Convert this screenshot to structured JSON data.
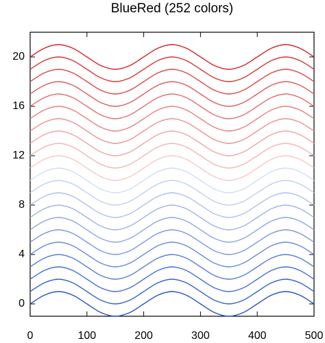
{
  "chart_data": {
    "type": "line",
    "title": "BlueRed (252 colors)",
    "x": [
      0,
      25,
      50,
      75,
      100,
      125,
      150,
      175,
      200,
      225,
      250,
      275,
      300,
      325,
      350,
      375,
      400,
      425,
      450,
      475,
      500
    ],
    "xlim": [
      0,
      500
    ],
    "xticks": [
      0,
      100,
      200,
      300,
      400,
      500
    ],
    "ylim": [
      -1,
      22
    ],
    "yticks": [
      0,
      4,
      8,
      12,
      16,
      20
    ],
    "series": [
      {
        "color": "#2050c8",
        "values": [
          0,
          0.71,
          1,
          0.71,
          0,
          -0.71,
          -1,
          -0.71,
          0,
          0.71,
          1,
          0.71,
          0,
          -0.71,
          -1,
          -0.71,
          0,
          0.71,
          1,
          0.71,
          0
        ]
      },
      {
        "color": "#325ecd",
        "values": [
          1,
          1.71,
          2,
          1.71,
          1,
          0.29,
          0,
          0.29,
          1,
          1.71,
          2,
          1.71,
          1,
          0.29,
          0,
          0.29,
          1,
          1.71,
          2,
          1.71,
          1
        ]
      },
      {
        "color": "#436cd1",
        "values": [
          2,
          2.71,
          3,
          2.71,
          2,
          1.29,
          1,
          1.29,
          2,
          2.71,
          3,
          2.71,
          2,
          1.29,
          1,
          1.29,
          2,
          2.71,
          3,
          2.71,
          2
        ]
      },
      {
        "color": "#557ad6",
        "values": [
          3,
          3.71,
          4,
          3.71,
          3,
          2.29,
          2,
          2.29,
          3,
          3.71,
          4,
          3.71,
          3,
          2.29,
          2,
          2.29,
          3,
          3.71,
          4,
          3.71,
          3
        ]
      },
      {
        "color": "#6688da",
        "values": [
          4,
          4.71,
          5,
          4.71,
          4,
          3.29,
          3,
          3.29,
          4,
          4.71,
          5,
          4.71,
          4,
          3.29,
          3,
          3.29,
          4,
          4.71,
          5,
          4.71,
          4
        ]
      },
      {
        "color": "#7896df",
        "values": [
          5,
          5.71,
          6,
          5.71,
          5,
          4.29,
          4,
          4.29,
          5,
          5.71,
          6,
          5.71,
          5,
          4.29,
          4,
          4.29,
          5,
          5.71,
          6,
          5.71,
          5
        ]
      },
      {
        "color": "#8aa4e3",
        "values": [
          6,
          6.71,
          7,
          6.71,
          6,
          5.29,
          5,
          5.29,
          6,
          6.71,
          7,
          6.71,
          6,
          5.29,
          5,
          5.29,
          6,
          6.71,
          7,
          6.71,
          6
        ]
      },
      {
        "color": "#9bb2e8",
        "values": [
          7,
          7.71,
          8,
          7.71,
          7,
          6.29,
          6,
          6.29,
          7,
          7.71,
          8,
          7.71,
          7,
          6.29,
          6,
          6.29,
          7,
          7.71,
          8,
          7.71,
          7
        ]
      },
      {
        "color": "#adc0ec",
        "values": [
          8,
          8.71,
          9,
          8.71,
          8,
          7.29,
          7,
          7.29,
          8,
          8.71,
          9,
          8.71,
          8,
          7.29,
          7,
          7.29,
          8,
          8.71,
          9,
          8.71,
          8
        ]
      },
      {
        "color": "#becef1",
        "values": [
          9,
          9.71,
          10,
          9.71,
          9,
          8.29,
          8,
          8.29,
          9,
          9.71,
          10,
          9.71,
          9,
          8.29,
          8,
          8.29,
          9,
          9.71,
          10,
          9.71,
          9
        ]
      },
      {
        "color": "#d0dcf5",
        "values": [
          10,
          10.71,
          11,
          10.71,
          10,
          9.29,
          9,
          9.29,
          10,
          10.71,
          11,
          10.71,
          10,
          9.29,
          9,
          9.29,
          10,
          10.71,
          11,
          10.71,
          10
        ]
      },
      {
        "color": "#f5c8c8",
        "values": [
          11,
          11.71,
          12,
          11.71,
          11,
          10.29,
          10,
          10.29,
          11,
          11.71,
          12,
          11.71,
          11,
          10.29,
          10,
          10.29,
          11,
          11.71,
          12,
          11.71,
          11
        ]
      },
      {
        "color": "#f1b5b5",
        "values": [
          12,
          12.71,
          13,
          12.71,
          12,
          11.29,
          11,
          11.29,
          12,
          12.71,
          13,
          12.71,
          12,
          11.29,
          11,
          11.29,
          12,
          12.71,
          13,
          12.71,
          12
        ]
      },
      {
        "color": "#eea3a3",
        "values": [
          13,
          13.71,
          14,
          13.71,
          13,
          12.29,
          12,
          12.29,
          13,
          13.71,
          14,
          13.71,
          13,
          12.29,
          12,
          12.29,
          13,
          13.71,
          14,
          13.71,
          13
        ]
      },
      {
        "color": "#ea9090",
        "values": [
          14,
          14.71,
          15,
          14.71,
          14,
          13.29,
          13,
          13.29,
          14,
          14.71,
          15,
          14.71,
          14,
          13.29,
          13,
          13.29,
          14,
          14.71,
          15,
          14.71,
          14
        ]
      },
      {
        "color": "#e67d7d",
        "values": [
          15,
          15.71,
          16,
          15.71,
          15,
          14.29,
          14,
          14.29,
          15,
          15.71,
          16,
          15.71,
          15,
          14.29,
          14,
          14.29,
          15,
          15.71,
          16,
          15.71,
          15
        ]
      },
      {
        "color": "#e36b6b",
        "values": [
          16,
          16.71,
          17,
          16.71,
          16,
          15.29,
          15,
          15.29,
          16,
          16.71,
          17,
          16.71,
          16,
          15.29,
          15,
          15.29,
          16,
          16.71,
          17,
          16.71,
          16
        ]
      },
      {
        "color": "#df5858",
        "values": [
          17,
          17.71,
          18,
          17.71,
          17,
          16.29,
          16,
          16.29,
          17,
          17.71,
          18,
          17.71,
          17,
          16.29,
          16,
          16.29,
          17,
          17.71,
          18,
          17.71,
          17
        ]
      },
      {
        "color": "#db4545",
        "values": [
          18,
          18.71,
          19,
          18.71,
          18,
          17.29,
          17,
          17.29,
          18,
          18.71,
          19,
          18.71,
          18,
          17.29,
          17,
          17.29,
          18,
          18.71,
          19,
          18.71,
          18
        ]
      },
      {
        "color": "#d83333",
        "values": [
          19,
          19.71,
          20,
          19.71,
          19,
          18.29,
          18,
          18.29,
          19,
          19.71,
          20,
          19.71,
          19,
          18.29,
          18,
          18.29,
          19,
          19.71,
          20,
          19.71,
          19
        ]
      },
      {
        "color": "#d42020",
        "values": [
          20,
          20.71,
          21,
          20.71,
          20,
          19.29,
          19,
          19.29,
          20,
          20.71,
          21,
          20.71,
          20,
          19.29,
          19,
          19.29,
          20,
          20.71,
          21,
          20.71,
          20
        ]
      }
    ]
  }
}
